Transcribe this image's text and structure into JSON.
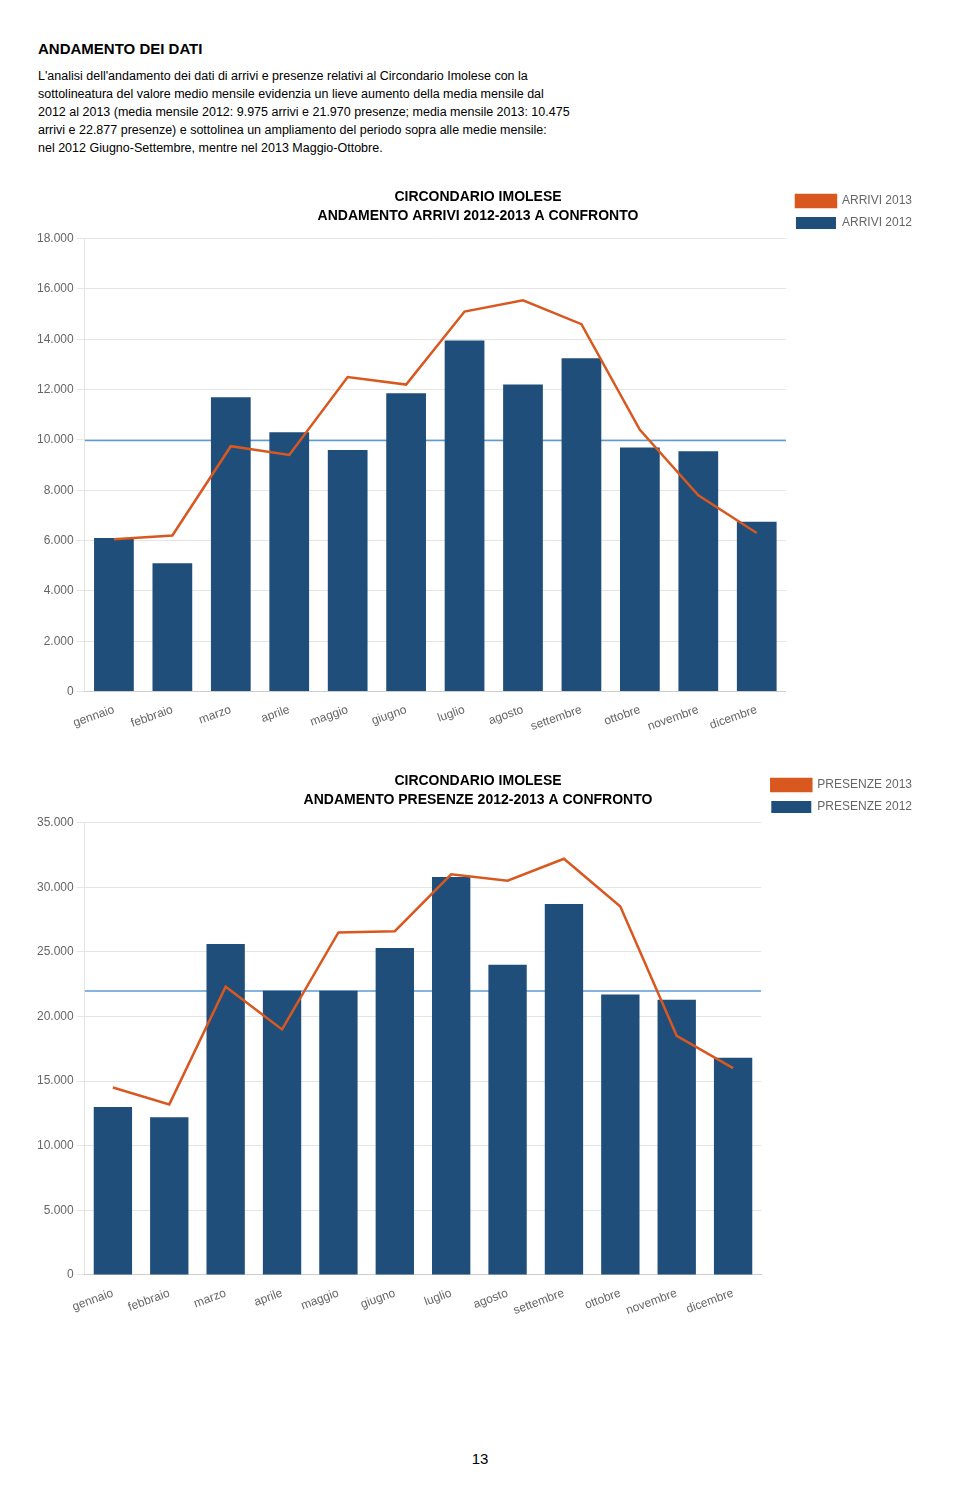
{
  "title": "ANDAMENTO DEI DATI",
  "annotations": [
    "L'analisi dell'andamento dei dati di arrivi e presenze relativi al Circondario Imolese con la",
    "sottolineatura del valore medio mensile evidenzia un lieve aumento della media mensile dal",
    "2012 al 2013 (media mensile 2012: 9.975 arrivi e 21.970 presenze; media mensile 2013: 10.475",
    "arrivi e 22.877 presenze) e sottolinea un ampliamento del periodo sopra alle medie mensile:",
    "nel 2012 Giugno-Settembre, mentre nel 2013 Maggio-Ottobre."
  ],
  "page_number": "13",
  "chart_data": [
    {
      "type": "bar",
      "title": "CIRCONDARIO IMOLESE",
      "subtitle": "ANDAMENTO ARRIVI 2012-2013 A CONFRONTO",
      "categories": [
        "gennaio",
        "febbraio",
        "marzo",
        "aprile",
        "maggio",
        "giugno",
        "luglio",
        "agosto",
        "settembre",
        "ottobre",
        "novembre",
        "dicembre"
      ],
      "series": [
        {
          "name": "ARRIVI 2012",
          "type": "bar",
          "color": "#1F4E7A",
          "values": [
            6100,
            5100,
            11700,
            10300,
            9600,
            11850,
            13950,
            12200,
            13250,
            9700,
            9550,
            6750
          ]
        },
        {
          "name": "ARRIVI 2013",
          "type": "line",
          "color": "#D85820",
          "marker": "none",
          "values": [
            6050,
            6200,
            9750,
            9400,
            12500,
            12200,
            15100,
            15550,
            14600,
            10400,
            7800,
            6300
          ]
        }
      ],
      "mean": {
        "value": 9975,
        "color": "#5B9BD5"
      },
      "ylim": [
        0,
        18000
      ],
      "yticks": [
        0,
        {
          "value": 2000,
          "label": "2.000"
        },
        {
          "value": 4000,
          "label": "4.000"
        },
        {
          "value": 6000,
          "label": "6.000"
        },
        {
          "value": 8000,
          "label": "8.000"
        },
        {
          "value": 10000,
          "label": "10.000"
        },
        {
          "value": 12000,
          "label": "12.000"
        },
        {
          "value": 14000,
          "label": "14.000"
        },
        {
          "value": 16000,
          "label": "16.000"
        },
        {
          "value": 18000,
          "label": "18.000"
        }
      ],
      "grid": true,
      "legend": "right"
    },
    {
      "type": "bar",
      "title": "CIRCONDARIO IMOLESE",
      "subtitle": "ANDAMENTO PRESENZE 2012-2013 A CONFRONTO",
      "categories": [
        "gennaio",
        "febbraio",
        "marzo",
        "aprile",
        "maggio",
        "giugno",
        "luglio",
        "agosto",
        "settembre",
        "ottobre",
        "novembre",
        "dicembre"
      ],
      "series": [
        {
          "name": "PRESENZE 2012",
          "type": "bar",
          "color": "#1F4E7A",
          "values": [
            13000,
            12200,
            25600,
            22000,
            22000,
            25300,
            30800,
            24000,
            28700,
            21700,
            21300,
            16800
          ]
        },
        {
          "name": "PRESENZE 2013",
          "type": "line",
          "color": "#D85820",
          "marker": "none",
          "values": [
            14500,
            13200,
            22300,
            19000,
            26500,
            26600,
            31000,
            30500,
            32200,
            28500,
            18500,
            16000
          ]
        }
      ],
      "mean": {
        "value": 21970,
        "color": "#5B9BD5"
      },
      "ylim": [
        0,
        35000
      ],
      "yticks": [
        0,
        {
          "value": 5000,
          "label": "5.000"
        },
        {
          "value": 10000,
          "label": "10.000"
        },
        {
          "value": 15000,
          "label": "15.000"
        },
        {
          "value": 20000,
          "label": "20.000"
        },
        {
          "value": 25000,
          "label": "25.000"
        },
        {
          "value": 30000,
          "label": "30.000"
        },
        {
          "value": 35000,
          "label": "35.000"
        }
      ],
      "grid": true,
      "legend": "right"
    }
  ]
}
